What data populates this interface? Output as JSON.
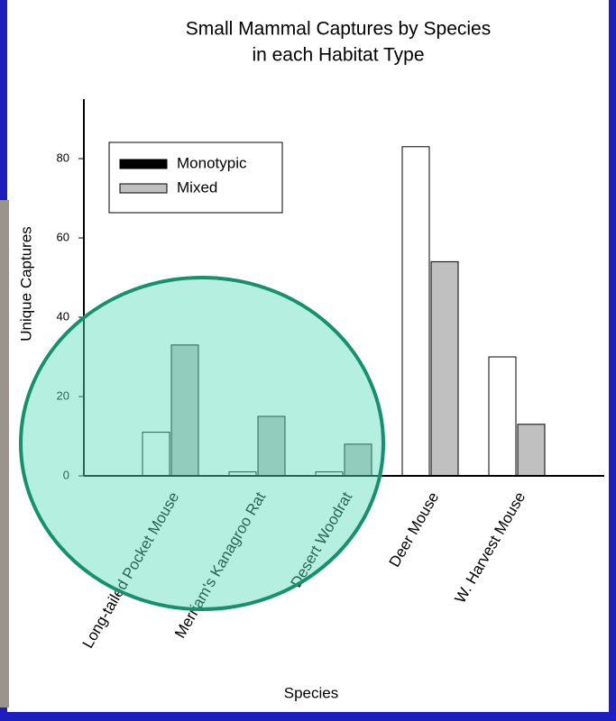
{
  "chart_data": {
    "type": "bar",
    "title": [
      "Small Mammal Captures by Species",
      "in each Habitat Type"
    ],
    "x_label": "Species",
    "y_label": "Unique Captures",
    "categories": [
      "Long-tailed Pocket Mouse",
      "Merriam's Kanagroo Rat",
      "Desert Woodrat",
      "Deer Mouse",
      "W. Harvest Mouse"
    ],
    "series": [
      {
        "name": "Monotypic",
        "color": "#ffffff",
        "legend_color": "#000000",
        "values": [
          11,
          1,
          1,
          83,
          30
        ]
      },
      {
        "name": "Mixed",
        "color": "#c0c0c0",
        "legend_color": "#c0c0c0",
        "values": [
          33,
          15,
          8,
          54,
          13
        ]
      }
    ],
    "ylim": [
      0,
      95
    ],
    "yticks": [
      0,
      20,
      40,
      60,
      80
    ],
    "legend": "upper left"
  }
}
